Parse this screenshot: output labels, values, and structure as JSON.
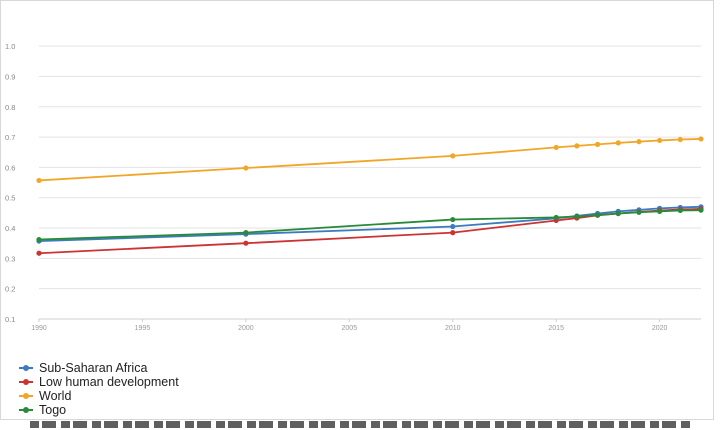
{
  "chart_data": {
    "type": "line",
    "title": "",
    "xlabel": "",
    "ylabel": "",
    "x_ticks": [
      "1990",
      "1995",
      "2000",
      "2005",
      "2010",
      "2015",
      "2020"
    ],
    "y_ticks": [
      "0.1",
      "0.2",
      "0.3",
      "0.4",
      "0.5",
      "0.6",
      "0.7",
      "0.8",
      "0.9",
      "1.0"
    ],
    "xlim": [
      1990,
      2022
    ],
    "ylim": [
      0.1,
      1.05
    ],
    "grid": true,
    "legend_position": "bottom-left",
    "series": [
      {
        "name": "Sub-Saharan Africa",
        "color": "#3d7bbf",
        "x": [
          1990,
          2000,
          2010,
          2015,
          2016,
          2017,
          2018,
          2019,
          2020,
          2021,
          2022
        ],
        "y": [
          0.357,
          0.38,
          0.405,
          0.432,
          0.44,
          0.448,
          0.455,
          0.46,
          0.465,
          0.468,
          0.47
        ]
      },
      {
        "name": "Low human development",
        "color": "#cc3333",
        "x": [
          1990,
          2000,
          2010,
          2015,
          2016,
          2017,
          2018,
          2019,
          2020,
          2021,
          2022
        ],
        "y": [
          0.317,
          0.35,
          0.385,
          0.425,
          0.433,
          0.442,
          0.448,
          0.453,
          0.458,
          0.461,
          0.463
        ]
      },
      {
        "name": "World",
        "color": "#f2a628",
        "x": [
          1990,
          2000,
          2010,
          2015,
          2016,
          2017,
          2018,
          2019,
          2020,
          2021,
          2022
        ],
        "y": [
          0.557,
          0.598,
          0.638,
          0.666,
          0.671,
          0.676,
          0.681,
          0.685,
          0.689,
          0.692,
          0.694
        ]
      },
      {
        "name": "Togo",
        "color": "#2a8a3c",
        "x": [
          1990,
          2000,
          2010,
          2015,
          2016,
          2017,
          2018,
          2019,
          2020,
          2021,
          2022
        ],
        "y": [
          0.362,
          0.385,
          0.428,
          0.435,
          0.438,
          0.443,
          0.448,
          0.452,
          0.455,
          0.458,
          0.459
        ]
      }
    ]
  }
}
